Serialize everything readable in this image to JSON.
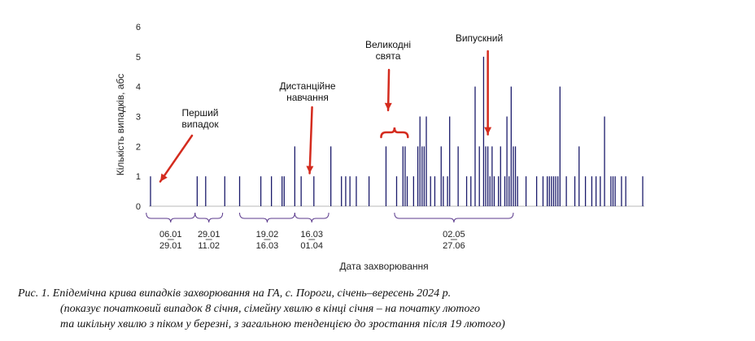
{
  "chart_data": {
    "type": "bar",
    "title": "",
    "xlabel": "Дата захворювання",
    "ylabel": "Кількість випадків, абс",
    "ylim": [
      0,
      6
    ],
    "yticks": [
      0,
      1,
      2,
      3,
      4,
      5,
      6
    ],
    "grid": false,
    "bar_color": "#1b1b6b",
    "annotation_color": "#d42b1e",
    "bracket_color": "#5b3a8c",
    "x_day_range": [
      8,
      240
    ],
    "cases": [
      {
        "day": 8,
        "count": 1
      },
      {
        "day": 30,
        "count": 1
      },
      {
        "day": 34,
        "count": 1
      },
      {
        "day": 43,
        "count": 1
      },
      {
        "day": 50,
        "count": 1
      },
      {
        "day": 60,
        "count": 1
      },
      {
        "day": 65,
        "count": 1
      },
      {
        "day": 70,
        "count": 1
      },
      {
        "day": 71,
        "count": 1
      },
      {
        "day": 76,
        "count": 2
      },
      {
        "day": 79,
        "count": 1
      },
      {
        "day": 85,
        "count": 1
      },
      {
        "day": 93,
        "count": 2
      },
      {
        "day": 98,
        "count": 1
      },
      {
        "day": 100,
        "count": 1
      },
      {
        "day": 102,
        "count": 1
      },
      {
        "day": 105,
        "count": 1
      },
      {
        "day": 111,
        "count": 1
      },
      {
        "day": 119,
        "count": 2
      },
      {
        "day": 124,
        "count": 1
      },
      {
        "day": 127,
        "count": 2
      },
      {
        "day": 128,
        "count": 2
      },
      {
        "day": 129,
        "count": 1
      },
      {
        "day": 132,
        "count": 1
      },
      {
        "day": 134,
        "count": 2
      },
      {
        "day": 135,
        "count": 3
      },
      {
        "day": 136,
        "count": 2
      },
      {
        "day": 137,
        "count": 2
      },
      {
        "day": 138,
        "count": 3
      },
      {
        "day": 140,
        "count": 1
      },
      {
        "day": 142,
        "count": 1
      },
      {
        "day": 145,
        "count": 2
      },
      {
        "day": 146,
        "count": 1
      },
      {
        "day": 148,
        "count": 1
      },
      {
        "day": 149,
        "count": 3
      },
      {
        "day": 153,
        "count": 2
      },
      {
        "day": 157,
        "count": 1
      },
      {
        "day": 159,
        "count": 1
      },
      {
        "day": 161,
        "count": 4
      },
      {
        "day": 163,
        "count": 2
      },
      {
        "day": 165,
        "count": 5
      },
      {
        "day": 166,
        "count": 2
      },
      {
        "day": 167,
        "count": 2
      },
      {
        "day": 168,
        "count": 1
      },
      {
        "day": 169,
        "count": 2
      },
      {
        "day": 170,
        "count": 1
      },
      {
        "day": 172,
        "count": 1
      },
      {
        "day": 173,
        "count": 2
      },
      {
        "day": 175,
        "count": 1
      },
      {
        "day": 176,
        "count": 3
      },
      {
        "day": 177,
        "count": 1
      },
      {
        "day": 178,
        "count": 4
      },
      {
        "day": 179,
        "count": 2
      },
      {
        "day": 180,
        "count": 2
      },
      {
        "day": 181,
        "count": 1
      },
      {
        "day": 185,
        "count": 1
      },
      {
        "day": 190,
        "count": 1
      },
      {
        "day": 193,
        "count": 1
      },
      {
        "day": 195,
        "count": 1
      },
      {
        "day": 196,
        "count": 1
      },
      {
        "day": 197,
        "count": 1
      },
      {
        "day": 198,
        "count": 1
      },
      {
        "day": 199,
        "count": 1
      },
      {
        "day": 200,
        "count": 1
      },
      {
        "day": 201,
        "count": 4
      },
      {
        "day": 204,
        "count": 1
      },
      {
        "day": 208,
        "count": 1
      },
      {
        "day": 210,
        "count": 2
      },
      {
        "day": 213,
        "count": 1
      },
      {
        "day": 216,
        "count": 1
      },
      {
        "day": 218,
        "count": 1
      },
      {
        "day": 220,
        "count": 1
      },
      {
        "day": 222,
        "count": 3
      },
      {
        "day": 225,
        "count": 1
      },
      {
        "day": 226,
        "count": 1
      },
      {
        "day": 227,
        "count": 1
      },
      {
        "day": 230,
        "count": 1
      },
      {
        "day": 232,
        "count": 1
      },
      {
        "day": 240,
        "count": 1
      }
    ],
    "annotations": [
      {
        "text_lines": [
          "Перший",
          "випадок"
        ],
        "target_day": 8,
        "target_count": 0.5
      },
      {
        "text_lines": [
          "Дистанційне",
          "навчання"
        ],
        "target_day": 83,
        "target_count": 1.1
      },
      {
        "text_lines": [
          "Великодні",
          "свята"
        ],
        "target_day": 120,
        "target_count": 3.1
      },
      {
        "text_lines": [
          "Випускний"
        ],
        "target_day": 167,
        "target_count": 2.4
      }
    ],
    "holiday_brace": {
      "start_day": 119,
      "end_day": 127
    },
    "periods": [
      {
        "start_day": 6,
        "end_day": 29,
        "start_label": "06.01",
        "end_label": "29.01"
      },
      {
        "start_day": 29,
        "end_day": 42,
        "start_label": "29.01",
        "end_label": "11.02"
      },
      {
        "start_day": 50,
        "end_day": 76,
        "start_label": "19.02",
        "end_label": "16.03"
      },
      {
        "start_day": 76,
        "end_day": 92,
        "start_label": "16.03",
        "end_label": "01.04"
      },
      {
        "start_day": 123,
        "end_day": 179,
        "start_label": "02.05",
        "end_label": "27.06"
      }
    ]
  },
  "caption": {
    "line1": "Рис. 1. Епідемічна крива випадків захворювання на ГА, с. Пороги, січень–вересень 2024 р.",
    "line2": "(показує початковий випадок 8 січня, сімейну хвилю в кінці січня – на початку лютого",
    "line3": "та шкільну хвилю з піком у березні, з загальною тенденцією до зростання після 19 лютого)"
  }
}
